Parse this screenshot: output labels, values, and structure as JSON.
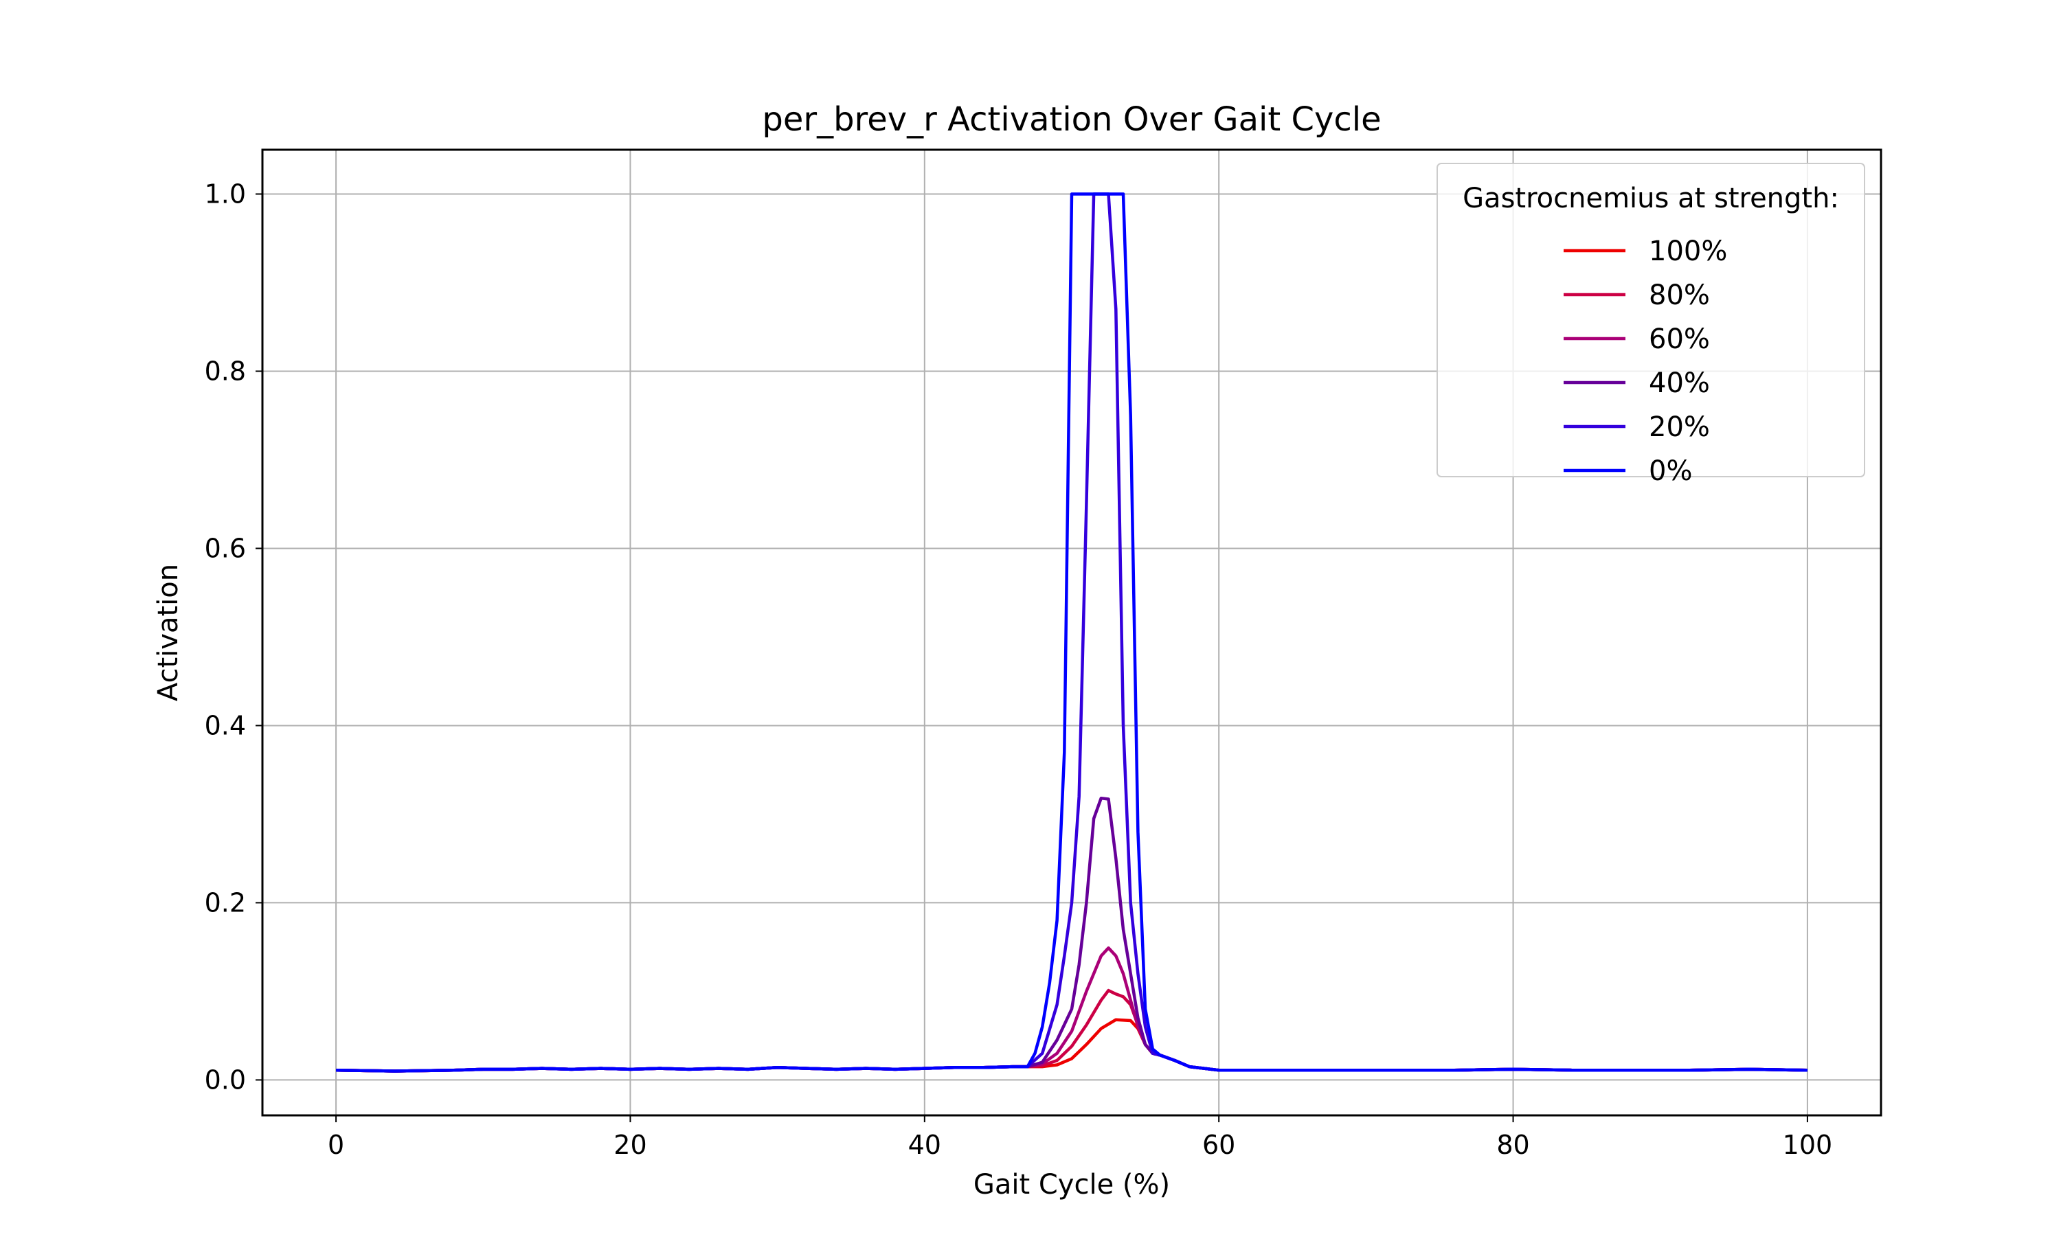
{
  "chart_data": {
    "type": "line",
    "title": "per_brev_r Activation Over Gait Cycle",
    "xlabel": "Gait Cycle (%)",
    "ylabel": "Activation",
    "xlim": [
      -5,
      105
    ],
    "ylim": [
      -0.04,
      1.05
    ],
    "xticks": [
      "0",
      "20",
      "40",
      "60",
      "80",
      "100"
    ],
    "yticks": [
      "0.0",
      "0.2",
      "0.4",
      "0.6",
      "0.8",
      "1.0"
    ],
    "grid": true,
    "legend": {
      "title": "Gastrocnemius at strength:",
      "placement": "top-right"
    },
    "baseline": [
      [
        0,
        0.011
      ],
      [
        4,
        0.01
      ],
      [
        8,
        0.011
      ],
      [
        10,
        0.012
      ],
      [
        12,
        0.012
      ],
      [
        14,
        0.013
      ],
      [
        16,
        0.012
      ],
      [
        18,
        0.013
      ],
      [
        20,
        0.012
      ],
      [
        22,
        0.013
      ],
      [
        24,
        0.012
      ],
      [
        26,
        0.013
      ],
      [
        28,
        0.012
      ],
      [
        30,
        0.014
      ],
      [
        32,
        0.013
      ],
      [
        34,
        0.012
      ],
      [
        36,
        0.013
      ],
      [
        38,
        0.012
      ],
      [
        40,
        0.013
      ],
      [
        42,
        0.014
      ],
      [
        44,
        0.014
      ],
      [
        46,
        0.015
      ],
      [
        47,
        0.015
      ]
    ],
    "tail": [
      [
        56,
        0.028
      ],
      [
        57,
        0.022
      ],
      [
        58,
        0.015
      ],
      [
        60,
        0.011
      ],
      [
        64,
        0.011
      ],
      [
        68,
        0.011
      ],
      [
        72,
        0.011
      ],
      [
        76,
        0.011
      ],
      [
        80,
        0.012
      ],
      [
        84,
        0.011
      ],
      [
        88,
        0.011
      ],
      [
        92,
        0.011
      ],
      [
        96,
        0.012
      ],
      [
        100,
        0.011
      ]
    ],
    "series": [
      {
        "name": "100%",
        "color": "#ee0000",
        "peak": [
          [
            48,
            0.015
          ],
          [
            49,
            0.017
          ],
          [
            50,
            0.024
          ],
          [
            51,
            0.04
          ],
          [
            52,
            0.058
          ],
          [
            53,
            0.068
          ],
          [
            54,
            0.067
          ],
          [
            54.5,
            0.058
          ],
          [
            55,
            0.04
          ],
          [
            55.5,
            0.03
          ]
        ]
      },
      {
        "name": "80%",
        "color": "#cc0044",
        "peak": [
          [
            48,
            0.016
          ],
          [
            49,
            0.022
          ],
          [
            50,
            0.038
          ],
          [
            51,
            0.062
          ],
          [
            52,
            0.09
          ],
          [
            52.5,
            0.101
          ],
          [
            53,
            0.097
          ],
          [
            53.5,
            0.094
          ],
          [
            54,
            0.085
          ],
          [
            54.5,
            0.062
          ],
          [
            55,
            0.04
          ],
          [
            55.5,
            0.03
          ]
        ]
      },
      {
        "name": "60%",
        "color": "#aa0077",
        "peak": [
          [
            48,
            0.018
          ],
          [
            49,
            0.03
          ],
          [
            50,
            0.055
          ],
          [
            51,
            0.1
          ],
          [
            52,
            0.14
          ],
          [
            52.5,
            0.149
          ],
          [
            53,
            0.14
          ],
          [
            53.5,
            0.12
          ],
          [
            54,
            0.09
          ],
          [
            54.5,
            0.06
          ],
          [
            55,
            0.04
          ],
          [
            55.5,
            0.03
          ]
        ]
      },
      {
        "name": "40%",
        "color": "#660099",
        "peak": [
          [
            48,
            0.02
          ],
          [
            49,
            0.045
          ],
          [
            50,
            0.08
          ],
          [
            50.5,
            0.13
          ],
          [
            51,
            0.2
          ],
          [
            51.5,
            0.295
          ],
          [
            52,
            0.318
          ],
          [
            52.5,
            0.317
          ],
          [
            53,
            0.25
          ],
          [
            53.5,
            0.17
          ],
          [
            54,
            0.12
          ],
          [
            54.5,
            0.07
          ],
          [
            55,
            0.04
          ],
          [
            55.5,
            0.03
          ]
        ]
      },
      {
        "name": "20%",
        "color": "#3300dd",
        "peak": [
          [
            48,
            0.03
          ],
          [
            49,
            0.085
          ],
          [
            49.5,
            0.14
          ],
          [
            50,
            0.2
          ],
          [
            50.5,
            0.32
          ],
          [
            51,
            0.65
          ],
          [
            51.5,
            1.0
          ],
          [
            52,
            1.0
          ],
          [
            52.5,
            1.0
          ],
          [
            53,
            0.87
          ],
          [
            53.5,
            0.4
          ],
          [
            54,
            0.2
          ],
          [
            54.5,
            0.12
          ],
          [
            55,
            0.06
          ],
          [
            55.5,
            0.03
          ]
        ]
      },
      {
        "name": "0%",
        "color": "#0000ff",
        "peak": [
          [
            47.5,
            0.03
          ],
          [
            48,
            0.06
          ],
          [
            48.5,
            0.11
          ],
          [
            49,
            0.18
          ],
          [
            49.5,
            0.37
          ],
          [
            50,
            1.0
          ],
          [
            51,
            1.0
          ],
          [
            52,
            1.0
          ],
          [
            53,
            1.0
          ],
          [
            53.5,
            1.0
          ],
          [
            54,
            0.75
          ],
          [
            54.5,
            0.28
          ],
          [
            55,
            0.08
          ],
          [
            55.5,
            0.035
          ]
        ]
      }
    ]
  }
}
